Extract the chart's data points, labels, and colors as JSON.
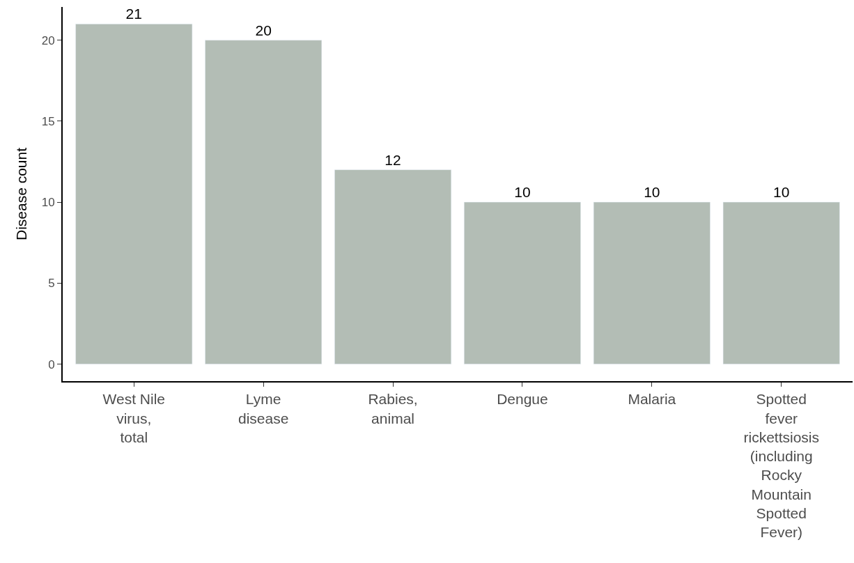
{
  "chart_data": {
    "type": "bar",
    "categories": [
      "West Nile virus, total",
      "Lyme disease",
      "Rabies, animal",
      "Dengue",
      "Malaria",
      "Spotted fever rickettsiosis (including Rocky Mountain Spotted Fever)"
    ],
    "values": [
      21,
      20,
      12,
      10,
      10,
      10
    ],
    "color": "#b3bdb5",
    "ylabel": "Disease count",
    "ylim": [
      -1.05,
      22.05
    ],
    "yticks": [
      0,
      5,
      10,
      15,
      20
    ],
    "data_labels": true
  }
}
